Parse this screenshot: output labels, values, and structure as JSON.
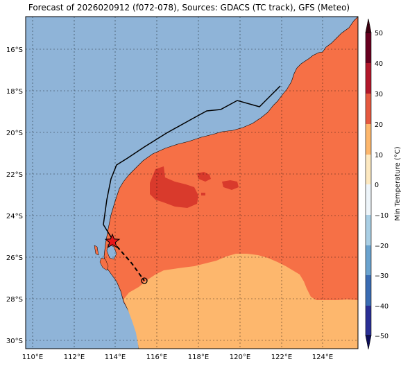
{
  "title": "Forecast of 2026020912 (f072-078), Sources: GDACS (TC track), GFS (Meteo)",
  "map": {
    "lon_ticks": [
      "110°E",
      "112°E",
      "114°E",
      "116°E",
      "118°E",
      "120°E",
      "122°E",
      "124°E"
    ],
    "lat_ticks": [
      "16°S",
      "18°S",
      "20°S",
      "22°S",
      "24°S",
      "26°S",
      "28°S",
      "30°S"
    ],
    "ocean_color": "#8fb4d8",
    "zones": [
      {
        "name": "20 to 30 °C",
        "color": "#f67046"
      },
      {
        "name": "30 to 40 °C",
        "color": "#d93a2c"
      },
      {
        "name": "10 to 20 °C",
        "color": "#fdb76d"
      }
    ],
    "track": {
      "past_color": "#000000",
      "forecast_style": "dashed",
      "current_marker": "red-star",
      "end_marker": "open-circle"
    }
  },
  "colorbar": {
    "label": "Min Temperature (°C)",
    "ticks": [
      "50",
      "40",
      "30",
      "20",
      "10",
      "0",
      "−10",
      "−20",
      "−30",
      "−40",
      "−50"
    ],
    "colors": [
      "#67001f",
      "#b2182b",
      "#d6604d",
      "#f4a582",
      "#fddbc7",
      "#f7f7f7",
      "#d1e5f0",
      "#92c5de",
      "#4393c3",
      "#2166ac",
      "#1c1f8c"
    ]
  }
}
